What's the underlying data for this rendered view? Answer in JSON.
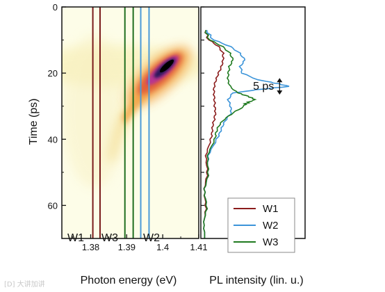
{
  "watermark": "[D] 大讲加讲",
  "chart_data": [
    {
      "type": "heatmap",
      "xlabel": "Photon energy (eV)",
      "ylabel": "Time (ps)",
      "xlim": [
        1.372,
        1.41
      ],
      "ylim": [
        0,
        70
      ],
      "y_inverted": true,
      "x_ticks": [
        1.38,
        1.39,
        1.4,
        1.41
      ],
      "x_tick_labels": [
        "1.38",
        "1.39",
        "1.4",
        "1.41"
      ],
      "y_ticks": [
        0,
        20,
        40,
        60
      ],
      "y_tick_labels": [
        "0",
        "20",
        "40",
        "60"
      ],
      "colormap": [
        "#fbfbd8",
        "#f8e08a",
        "#f3a53a",
        "#e55a3c",
        "#c4398f",
        "#2a145a",
        "#000000"
      ],
      "emission_peak": {
        "energy_eV": 1.404,
        "time_ps": 18
      },
      "emission_tail_start": {
        "energy_eV": 1.383,
        "time_ps": 40
      },
      "windows": [
        {
          "name": "W1",
          "energy_range_eV": [
            1.3806,
            1.3826
          ],
          "color": "#7a1a1a"
        },
        {
          "name": "W3",
          "energy_range_eV": [
            1.3895,
            1.3918
          ],
          "color": "#1f6e1f"
        },
        {
          "name": "W2",
          "energy_range_eV": [
            1.3939,
            1.3962
          ],
          "color": "#4a9ad8"
        }
      ],
      "window_labels": [
        "W1",
        "W3",
        "W2"
      ]
    },
    {
      "type": "line",
      "xlabel": "PL intensity (lin. u.)",
      "ylim": [
        0,
        70
      ],
      "y_inverted": true,
      "series": [
        {
          "name": "W1",
          "color": "#8b1c1c",
          "y": [
            7,
            10,
            12,
            14,
            16,
            18,
            20,
            22,
            24,
            26,
            28,
            30,
            32,
            34,
            36,
            38,
            40,
            44,
            48,
            52,
            56,
            60,
            64,
            68
          ],
          "values": [
            0.01,
            0.05,
            0.16,
            0.21,
            0.2,
            0.17,
            0.14,
            0.13,
            0.12,
            0.11,
            0.1,
            0.1,
            0.12,
            0.12,
            0.1,
            0.08,
            0.06,
            0.04,
            0.03,
            0.02,
            0.02,
            0.01,
            0.01,
            0.01
          ]
        },
        {
          "name": "W2",
          "color": "#3b94d9",
          "y": [
            7,
            10,
            12,
            14,
            16,
            18,
            20,
            22,
            23,
            24,
            25,
            26,
            28,
            30,
            32,
            34,
            36,
            38,
            40,
            44,
            48,
            52,
            56,
            60,
            64,
            68
          ],
          "values": [
            0.02,
            0.1,
            0.28,
            0.38,
            0.42,
            0.36,
            0.38,
            0.55,
            0.72,
            0.87,
            0.55,
            0.3,
            0.24,
            0.26,
            0.28,
            0.24,
            0.2,
            0.16,
            0.12,
            0.07,
            0.04,
            0.03,
            0.02,
            0.02,
            0.01,
            0.01
          ]
        },
        {
          "name": "W3",
          "color": "#1f7a1f",
          "y": [
            7,
            10,
            12,
            14,
            16,
            18,
            20,
            22,
            24,
            26,
            27,
            28,
            29,
            30,
            32,
            34,
            36,
            38,
            40,
            44,
            48,
            52,
            56,
            60,
            64,
            68
          ],
          "values": [
            0.01,
            0.06,
            0.2,
            0.28,
            0.3,
            0.25,
            0.24,
            0.25,
            0.28,
            0.35,
            0.45,
            0.52,
            0.44,
            0.4,
            0.3,
            0.22,
            0.16,
            0.12,
            0.1,
            0.06,
            0.04,
            0.03,
            0.02,
            0.02,
            0.01,
            0.01
          ]
        }
      ],
      "annotation": {
        "text": "5 ps",
        "y_from": 21.5,
        "y_to": 26.5,
        "x": 0.77
      },
      "legend": {
        "placement": "bottom-right",
        "entries": [
          "W1",
          "W2",
          "W3"
        ]
      }
    }
  ]
}
